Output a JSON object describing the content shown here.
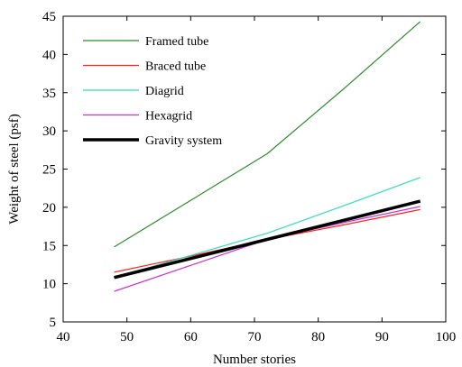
{
  "chart_data": {
    "type": "line",
    "title": "",
    "xlabel": "Number stories",
    "ylabel": "Weight of steel (psf)",
    "xlim": [
      40,
      100
    ],
    "ylim": [
      5,
      45
    ],
    "xticks": [
      40,
      50,
      60,
      70,
      80,
      90,
      100
    ],
    "yticks": [
      5,
      10,
      15,
      20,
      25,
      30,
      35,
      40,
      45
    ],
    "grid": false,
    "legend_position": "top-left",
    "series": [
      {
        "name": "Framed tube",
        "color": "#2e8b2e",
        "x": [
          48,
          60,
          72,
          84,
          96
        ],
        "y": [
          14.8,
          20.9,
          27.0,
          35.5,
          44.3
        ]
      },
      {
        "name": "Braced tube",
        "color": "#ff2020",
        "x": [
          48,
          60,
          72,
          84,
          96
        ],
        "y": [
          11.5,
          13.6,
          15.8,
          17.7,
          19.7
        ]
      },
      {
        "name": "Diagrid",
        "color": "#33ddbb",
        "x": [
          48,
          60,
          72,
          84,
          96
        ],
        "y": [
          10.8,
          13.7,
          16.6,
          20.2,
          23.9
        ]
      },
      {
        "name": "Hexagrid",
        "color": "#cc33cc",
        "x": [
          48,
          60,
          72,
          84,
          96
        ],
        "y": [
          9.0,
          12.4,
          15.8,
          18.0,
          20.1
        ]
      },
      {
        "name": "Gravity system",
        "color": "#000000",
        "x": [
          48,
          60,
          72,
          84,
          96
        ],
        "y": [
          10.8,
          13.3,
          15.8,
          18.3,
          20.8
        ]
      }
    ]
  }
}
